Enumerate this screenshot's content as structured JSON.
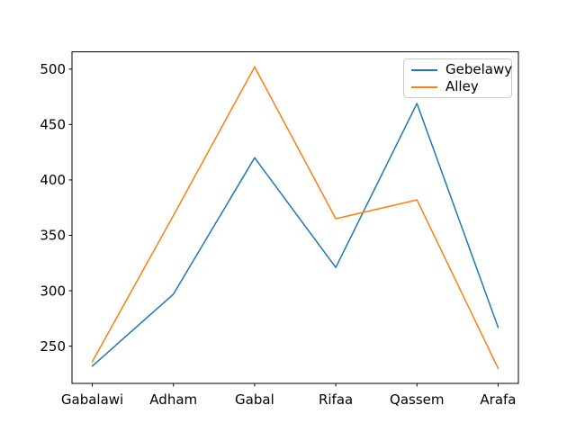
{
  "figure": {
    "background": "#ffffff"
  },
  "chart_data": {
    "type": "line",
    "title": "",
    "xlabel": "",
    "ylabel": "",
    "categories": [
      "Gabalawi",
      "Adham",
      "Gabal",
      "Rifaa",
      "Qassem",
      "Arafa"
    ],
    "series": [
      {
        "name": "Gebelawy",
        "color": "#1f77b4",
        "values": [
          232,
          297,
          420,
          321,
          469,
          267
        ]
      },
      {
        "name": "Alley",
        "color": "#ff7f0e",
        "values": [
          236,
          368,
          502,
          365,
          382,
          230
        ]
      }
    ],
    "y_ticks": [
      250,
      300,
      350,
      400,
      450,
      500
    ],
    "ylim": [
      216.4,
      515.6
    ],
    "xlim": [
      -0.25,
      5.25
    ],
    "grid": false,
    "line_width": 1.5,
    "axis_color": "#000000",
    "text_color": "#000000",
    "legend": {
      "position": "upper right",
      "frame_color": "#cccccc",
      "background": "rgba(255,255,255,0.8)"
    }
  }
}
